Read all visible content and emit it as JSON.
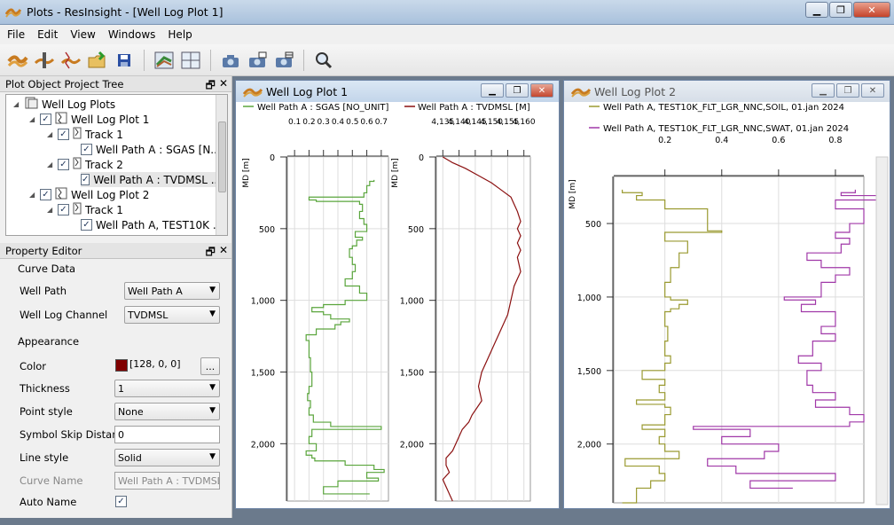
{
  "app": {
    "title": "Plots - ResInsight - [Well Log Plot 1]"
  },
  "menu": [
    "File",
    "Edit",
    "View",
    "Windows",
    "Help"
  ],
  "toolbar": [
    "new-plot-icon",
    "well-icon",
    "well-log-icon",
    "open-folder-icon",
    "save-icon",
    "3d-view-icon",
    "split-view-icon",
    "snapshot-icon",
    "snapshot-all-icon",
    "snapshot-plots-icon",
    "zoom-icon"
  ],
  "tree_pane": {
    "title": "Plot Object Project Tree",
    "items": [
      {
        "label": "Well Log Plots"
      },
      {
        "label": "Well Log Plot 1"
      },
      {
        "label": "Track 1"
      },
      {
        "label": "Well Path A : SGAS [N..."
      },
      {
        "label": "Track 2"
      },
      {
        "label": "Well Path A : TVDMSL ..."
      },
      {
        "label": "Well Log Plot 2"
      },
      {
        "label": "Track 1"
      },
      {
        "label": "Well Path A, TEST10K ..."
      }
    ]
  },
  "property_editor": {
    "title": "Property Editor",
    "group_curve": "Curve Data",
    "well_path_label": "Well Path",
    "well_path_value": "Well Path A",
    "channel_label": "Well Log Channel",
    "channel_value": "TVDMSL",
    "group_appearance": "Appearance",
    "color_label": "Color",
    "color_value": "[128, 0, 0]",
    "color_hex": "#800000",
    "color_button": "...",
    "thickness_label": "Thickness",
    "thickness_value": "1",
    "point_label": "Point style",
    "point_value": "None",
    "skip_label": "Symbol Skip Distance",
    "skip_value": "0",
    "line_label": "Line style",
    "line_value": "Solid",
    "curve_name_label": "Curve Name",
    "curve_name_value": "Well Path A : TVDMSL [M]",
    "auto_name_label": "Auto Name",
    "auto_name_checked": "✓"
  },
  "plot1": {
    "title": "Well Log Plot 1",
    "depth_label": "MD [m]",
    "depth_ticks": [
      "0",
      "500",
      "1,000",
      "1,500",
      "2,000"
    ],
    "track1_legend": "Well Path A : SGAS [NO_UNIT]",
    "track1_ticks": [
      "0.1",
      "0.2",
      "0.3",
      "0.4",
      "0.5",
      "0.6",
      "0.7"
    ],
    "track1_color": "#5aa53c",
    "track2_legend": "Well Path A : TVDMSL [M]",
    "track2_ticks": [
      "4,135",
      "4,140",
      "4,145",
      "4,150",
      "4,155",
      "4,160"
    ],
    "track2_color": "#8b1010"
  },
  "plot2": {
    "title": "Well Log Plot 2",
    "depth_label": "MD [m]",
    "depth_ticks": [
      "500",
      "1,000",
      "1,500",
      "2,000"
    ],
    "legend_soil": "Well Path A, TEST10K_FLT_LGR_NNC,SOIL, 01.jan 2024",
    "legend_swat": "Well Path A, TEST10K_FLT_LGR_NNC,SWAT, 01.jan 2024",
    "x_ticks": [
      "0.2",
      "0.4",
      "0.6",
      "0.8"
    ],
    "soil_color": "#9a9a30",
    "swat_color": "#a038a8"
  },
  "chart_data": [
    {
      "type": "line",
      "title": "Well Log Plot 1 - Track 1",
      "xlabel": "SGAS",
      "ylabel": "MD [m]",
      "xlim": [
        0.05,
        0.75
      ],
      "ylim": [
        2450,
        0
      ],
      "series": [
        {
          "name": "Well Path A : SGAS [NO_UNIT]",
          "x": [
            0.65,
            0.62,
            0.6,
            0.58,
            0.2,
            0.25,
            0.55,
            0.57,
            0.55,
            0.58,
            0.6,
            0.52,
            0.57,
            0.53,
            0.5,
            0.48,
            0.5,
            0.52,
            0.5,
            0.45,
            0.55,
            0.6,
            0.45,
            0.3,
            0.22,
            0.3,
            0.35,
            0.48,
            0.42,
            0.38,
            0.25,
            0.18,
            0.2,
            0.21,
            0.22,
            0.2,
            0.19,
            0.21,
            0.2,
            0.23,
            0.35,
            0.7,
            0.22,
            0.2,
            0.25,
            0.18,
            0.22,
            0.24,
            0.45,
            0.65,
            0.72,
            0.6,
            0.68,
            0.4,
            0.3,
            0.62
          ],
          "y": [
            160,
            170,
            200,
            250,
            280,
            300,
            310,
            330,
            380,
            430,
            470,
            520,
            560,
            580,
            620,
            640,
            700,
            750,
            800,
            850,
            900,
            950,
            1000,
            1030,
            1050,
            1080,
            1100,
            1130,
            1150,
            1170,
            1200,
            1240,
            1280,
            1400,
            1500,
            1600,
            1650,
            1700,
            1750,
            1800,
            1850,
            1880,
            1900,
            1950,
            2000,
            2050,
            2080,
            2100,
            2120,
            2150,
            2180,
            2200,
            2240,
            2260,
            2300,
            2350
          ]
        }
      ]
    },
    {
      "type": "line",
      "title": "Well Log Plot 1 - Track 2",
      "xlabel": "TVDMSL",
      "ylabel": "MD [m]",
      "xlim": [
        4133,
        4162
      ],
      "ylim": [
        2450,
        0
      ],
      "series": [
        {
          "name": "Well Path A : TVDMSL [M]",
          "x": [
            4135,
            4138,
            4142,
            4146,
            4150,
            4153,
            4156,
            4157,
            4158,
            4159,
            4158,
            4159,
            4158,
            4159,
            4158,
            4159,
            4157,
            4156,
            4155,
            4153,
            4151,
            4149,
            4147,
            4146,
            4147,
            4144,
            4143,
            4141,
            4140,
            4139,
            4138,
            4136,
            4136,
            4137,
            4135,
            4136,
            4138
          ],
          "y": [
            0,
            40,
            80,
            130,
            180,
            230,
            280,
            330,
            380,
            450,
            500,
            550,
            600,
            650,
            700,
            800,
            900,
            1000,
            1100,
            1200,
            1300,
            1400,
            1500,
            1600,
            1700,
            1800,
            1850,
            1900,
            1950,
            2000,
            2050,
            2100,
            2150,
            2200,
            2250,
            2300,
            2400
          ]
        }
      ]
    },
    {
      "type": "line",
      "title": "Well Log Plot 2",
      "xlabel": "",
      "ylabel": "MD [m]",
      "xlim": [
        0.02,
        0.9
      ],
      "ylim": [
        2450,
        0
      ],
      "series": [
        {
          "name": "Well Path A, TEST10K_FLT_LGR_NNC,SOIL, 01.jan 2024",
          "x": [
            0.05,
            0.12,
            0.1,
            0.2,
            0.35,
            0.35,
            0.4,
            0.2,
            0.2,
            0.28,
            0.25,
            0.22,
            0.2,
            0.22,
            0.28,
            0.25,
            0.22,
            0.2,
            0.21,
            0.2,
            0.22,
            0.2,
            0.12,
            0.2,
            0.18,
            0.2,
            0.1,
            0.2,
            0.22,
            0.2,
            0.12,
            0.2,
            0.18,
            0.2,
            0.25,
            0.06,
            0.18,
            0.2,
            0.15,
            0.1,
            0.05
          ],
          "y": [
            270,
            290,
            310,
            340,
            400,
            500,
            550,
            560,
            600,
            620,
            700,
            800,
            900,
            1000,
            1020,
            1050,
            1080,
            1100,
            1200,
            1300,
            1400,
            1450,
            1500,
            1560,
            1600,
            1650,
            1700,
            1730,
            1750,
            1800,
            1870,
            1900,
            1950,
            2000,
            2050,
            2100,
            2150,
            2200,
            2250,
            2300,
            2400
          ]
        },
        {
          "name": "Well Path A, TEST10K_FLT_LGR_NNC,SWAT, 01.jan 2024",
          "x": [
            0.87,
            0.82,
            0.95,
            0.8,
            0.9,
            0.85,
            0.8,
            0.85,
            0.82,
            0.7,
            0.75,
            0.85,
            0.8,
            0.75,
            0.62,
            0.73,
            0.68,
            0.8,
            0.75,
            0.8,
            0.72,
            0.67,
            0.75,
            0.7,
            0.72,
            0.8,
            0.73,
            0.85,
            0.9,
            0.85,
            0.3,
            0.5,
            0.4,
            0.6,
            0.55,
            0.35,
            0.45,
            0.8,
            0.5,
            0.65
          ],
          "y": [
            270,
            290,
            310,
            340,
            400,
            500,
            560,
            600,
            640,
            700,
            750,
            800,
            850,
            900,
            1000,
            1020,
            1050,
            1100,
            1200,
            1250,
            1300,
            1400,
            1450,
            1500,
            1600,
            1650,
            1700,
            1750,
            1800,
            1850,
            1880,
            1900,
            1950,
            2000,
            2050,
            2100,
            2150,
            2200,
            2250,
            2300
          ]
        }
      ]
    }
  ]
}
